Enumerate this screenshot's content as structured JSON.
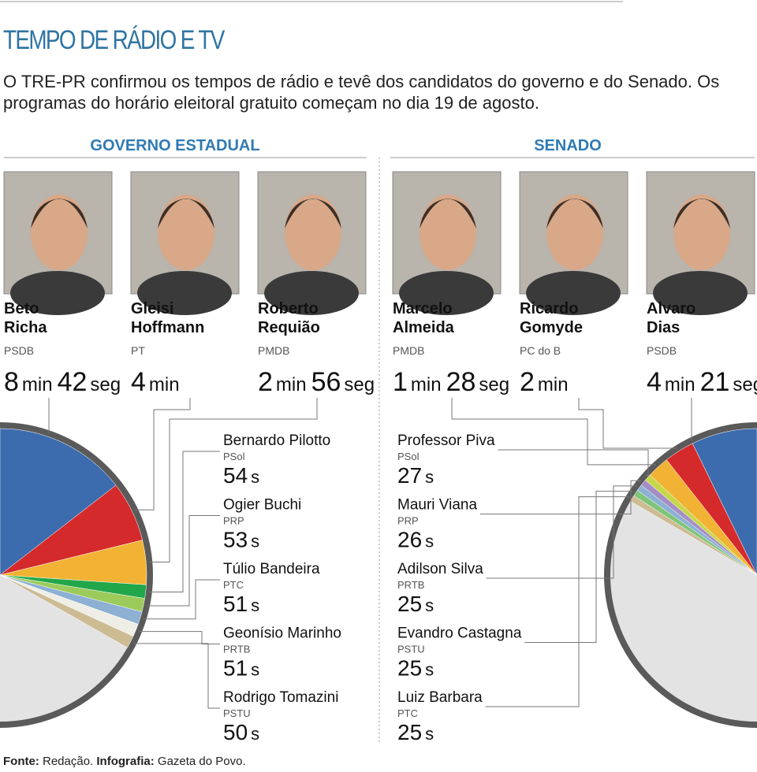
{
  "header": {
    "title": "TEMPO DE RÁDIO E TV",
    "intro": "O TRE-PR confirmou os tempos de rádio e tevê dos candidatos do governo e do Senado. Os programas do horário eleitoral gratuito começam no dia 19 de agosto."
  },
  "units": {
    "min": "min",
    "seg": "seg",
    "s": "s"
  },
  "sections": [
    {
      "title": "GOVERNO ESTADUAL",
      "candidates": [
        {
          "name_lines": [
            "Beto",
            "Richa"
          ],
          "party": "PSDB",
          "minutes": 8,
          "seconds": 42,
          "color": "#3d6cae"
        },
        {
          "name_lines": [
            "Gleisi",
            "Hoffmann"
          ],
          "party": "PT",
          "minutes": 4,
          "color": "#d52a2b"
        },
        {
          "name_lines": [
            "Roberto",
            "Requião"
          ],
          "party": "PMDB",
          "minutes": 2,
          "seconds": 56,
          "color": "#f2b233"
        }
      ],
      "others": [
        {
          "name": "Bernardo Pilotto",
          "party": "PSol",
          "seconds": 54,
          "color": "#22a64a"
        },
        {
          "name": "Ogier Buchi",
          "party": "PRP",
          "seconds": 53,
          "color": "#9ccb5b"
        },
        {
          "name": "Túlio Bandeira",
          "party": "PTC",
          "seconds": 51,
          "color": "#8db0d3"
        },
        {
          "name": "Geonísio Marinho",
          "party": "PRTB",
          "seconds": 51,
          "color": "#efeee6"
        },
        {
          "name": "Rodrigo Tomazini",
          "party": "PSTU",
          "seconds": 50,
          "color": "#cdbb93"
        }
      ]
    },
    {
      "title": "SENADO",
      "candidates": [
        {
          "name_lines": [
            "Alvaro",
            "Dias"
          ],
          "party": "PSDB",
          "minutes": 4,
          "seconds": 21,
          "color": "#3d6cae"
        },
        {
          "name_lines": [
            "Ricardo",
            "Gomyde"
          ],
          "party": "PC do B",
          "minutes": 2,
          "color": "#d52a2b"
        },
        {
          "name_lines": [
            "Marcelo",
            "Almeida"
          ],
          "party": "PMDB",
          "minutes": 1,
          "seconds": 28,
          "color": "#f2b233"
        }
      ],
      "others": [
        {
          "name": "Professor Piva",
          "party": "PSol",
          "seconds": 27,
          "color": "#c8d64a"
        },
        {
          "name": "Mauri Viana",
          "party": "PRP",
          "seconds": 26,
          "color": "#a58ec6"
        },
        {
          "name": "Adilson Silva",
          "party": "PRTB",
          "seconds": 25,
          "color": "#8db0d3"
        },
        {
          "name": "Evandro Castagna",
          "party": "PSTU",
          "seconds": 25,
          "color": "#7fc47a"
        },
        {
          "name": "Luiz Barbara",
          "party": "PTC",
          "seconds": 25,
          "color": "#cdbb93"
        }
      ]
    }
  ],
  "footer": {
    "source_label": "Fonte:",
    "source": "Redação.",
    "credit_label": "Infografia:",
    "credit": "Gazeta do Povo."
  }
}
